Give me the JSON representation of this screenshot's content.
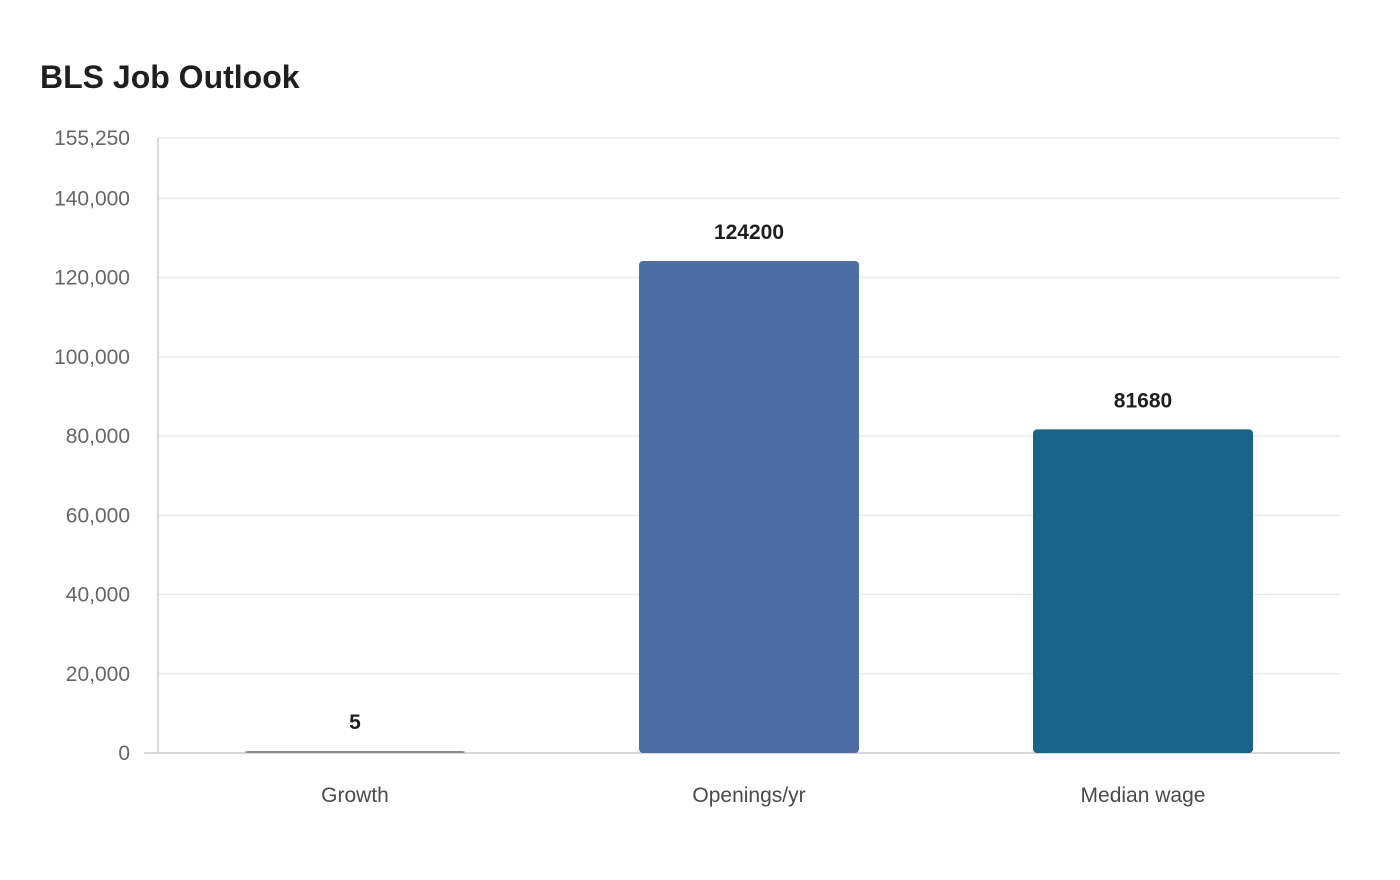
{
  "chart_data": {
    "type": "bar",
    "title": "BLS Job Outlook",
    "categories": [
      "Growth",
      "Openings/yr",
      "Median wage"
    ],
    "values": [
      5,
      124200,
      81680
    ],
    "data_labels": [
      "5",
      "124200",
      "81680"
    ],
    "xlabel": "",
    "ylabel": "",
    "ylim": [
      0,
      155250
    ],
    "yticks": [
      0,
      20000,
      40000,
      60000,
      80000,
      100000,
      120000,
      140000,
      155250
    ],
    "ytick_labels": [
      "0",
      "20,000",
      "40,000",
      "60,000",
      "80,000",
      "100,000",
      "120,000",
      "140,000",
      "155,250"
    ],
    "grid": true,
    "legend": "none",
    "colors": [
      "#8a8a8a",
      "#4c6ea5",
      "#196288"
    ],
    "gridline_color": "#eaeaea",
    "axis_color": "#cccccc"
  }
}
